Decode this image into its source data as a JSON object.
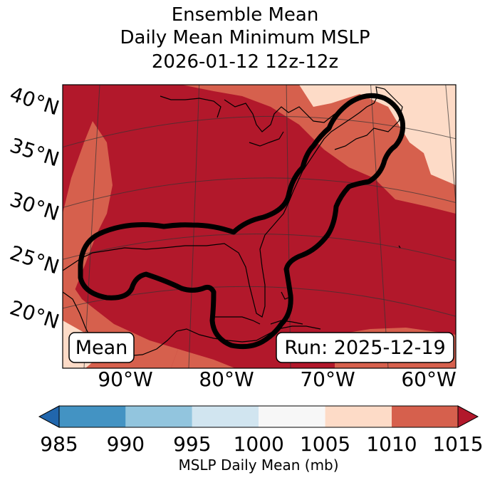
{
  "title": {
    "line1": "Ensemble Mean",
    "line2": "Daily Mean Minimum MSLP",
    "line3": "2026-01-12 12z-12z"
  },
  "map": {
    "region": "US East Coast / Gulf of Mexico / Western Atlantic",
    "lat_labels": [
      "40°N",
      "35°N",
      "30°N",
      "25°N",
      "20°N"
    ],
    "lon_labels": [
      "90°W",
      "80°W",
      "70°W",
      "60°W"
    ],
    "left_box": "Mean",
    "right_box": "Run: 2025-12-19",
    "contour_color": "#000000"
  },
  "colorbar": {
    "label": "MSLP Daily Mean (mb)",
    "ticks": [
      "985",
      "990",
      "995",
      "1000",
      "1005",
      "1010",
      "1015"
    ],
    "colors": [
      "#2166ac",
      "#4393c3",
      "#92c5de",
      "#d1e5f0",
      "#f7f7f7",
      "#fddbc7",
      "#d6604d",
      "#b2182b"
    ],
    "extend": "both"
  }
}
